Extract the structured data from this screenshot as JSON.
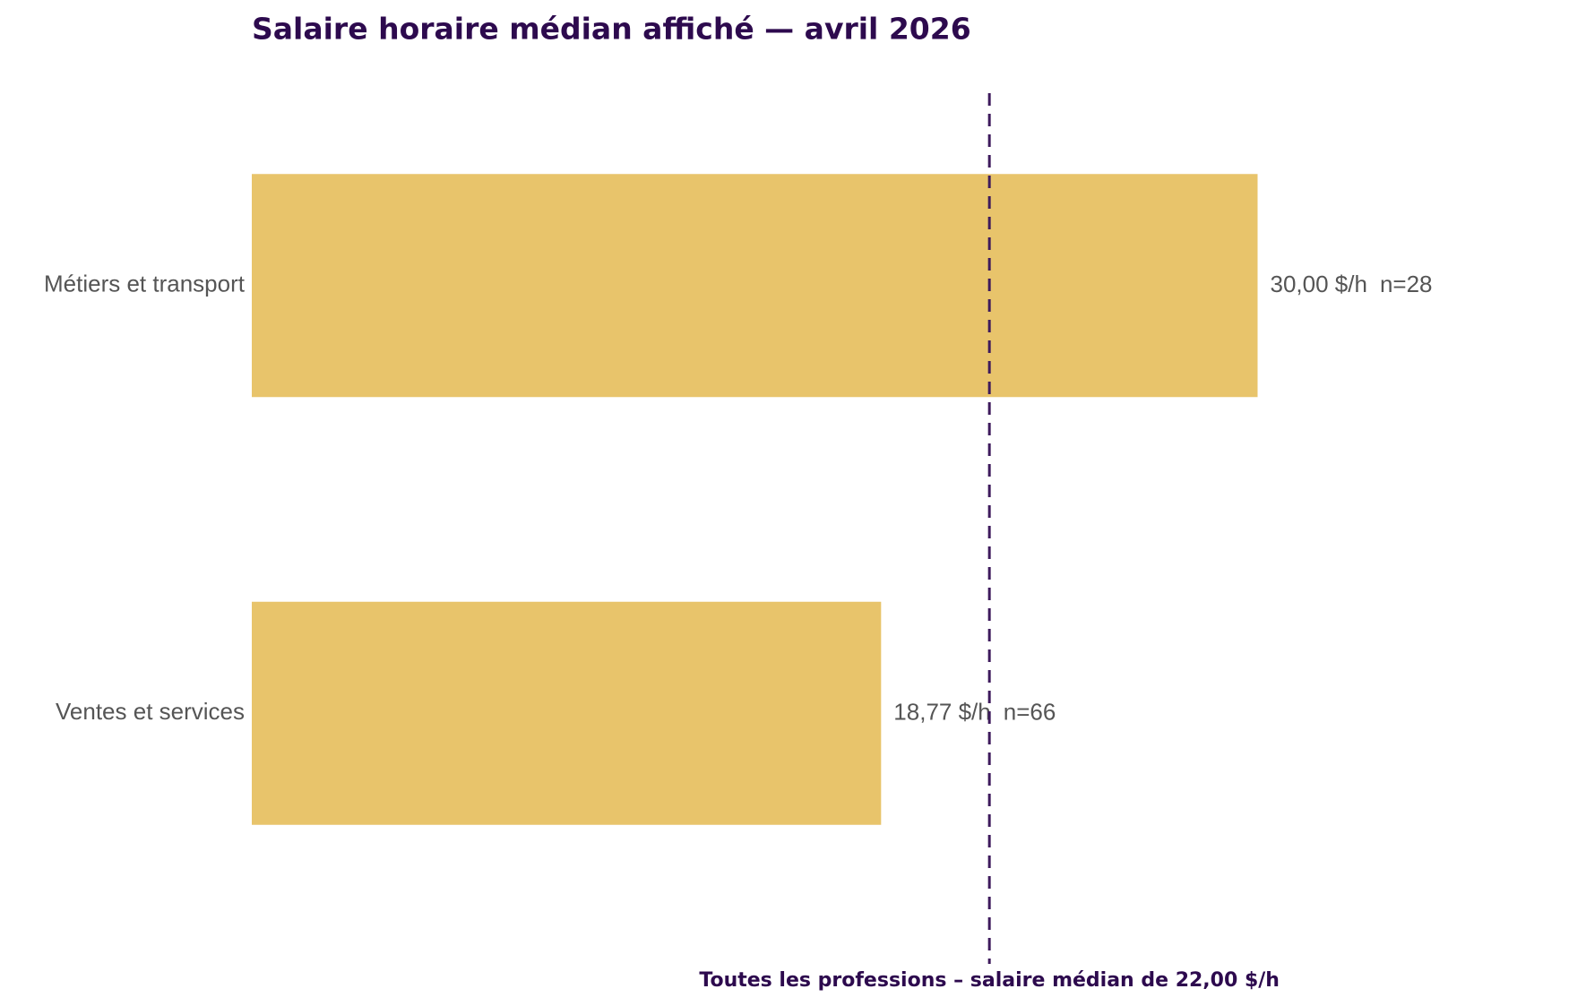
{
  "chart_data": {
    "type": "barh",
    "title": "Salaire horaire médian affiché — avril 2026",
    "categories": [
      "Métiers et transport",
      "Ventes et services"
    ],
    "values": [
      30,
      18.77
    ],
    "value_labels": [
      "30,00 $/h",
      "18,77 $/h"
    ],
    "n_labels": [
      "n=28",
      "n=66"
    ],
    "color": "#e8c46b",
    "xlim": [
      0,
      30
    ],
    "reference_line": {
      "value": 22,
      "label": "Toutes les professions – salaire médian de 22,00 $/h",
      "color": "#3d1a5c"
    }
  }
}
